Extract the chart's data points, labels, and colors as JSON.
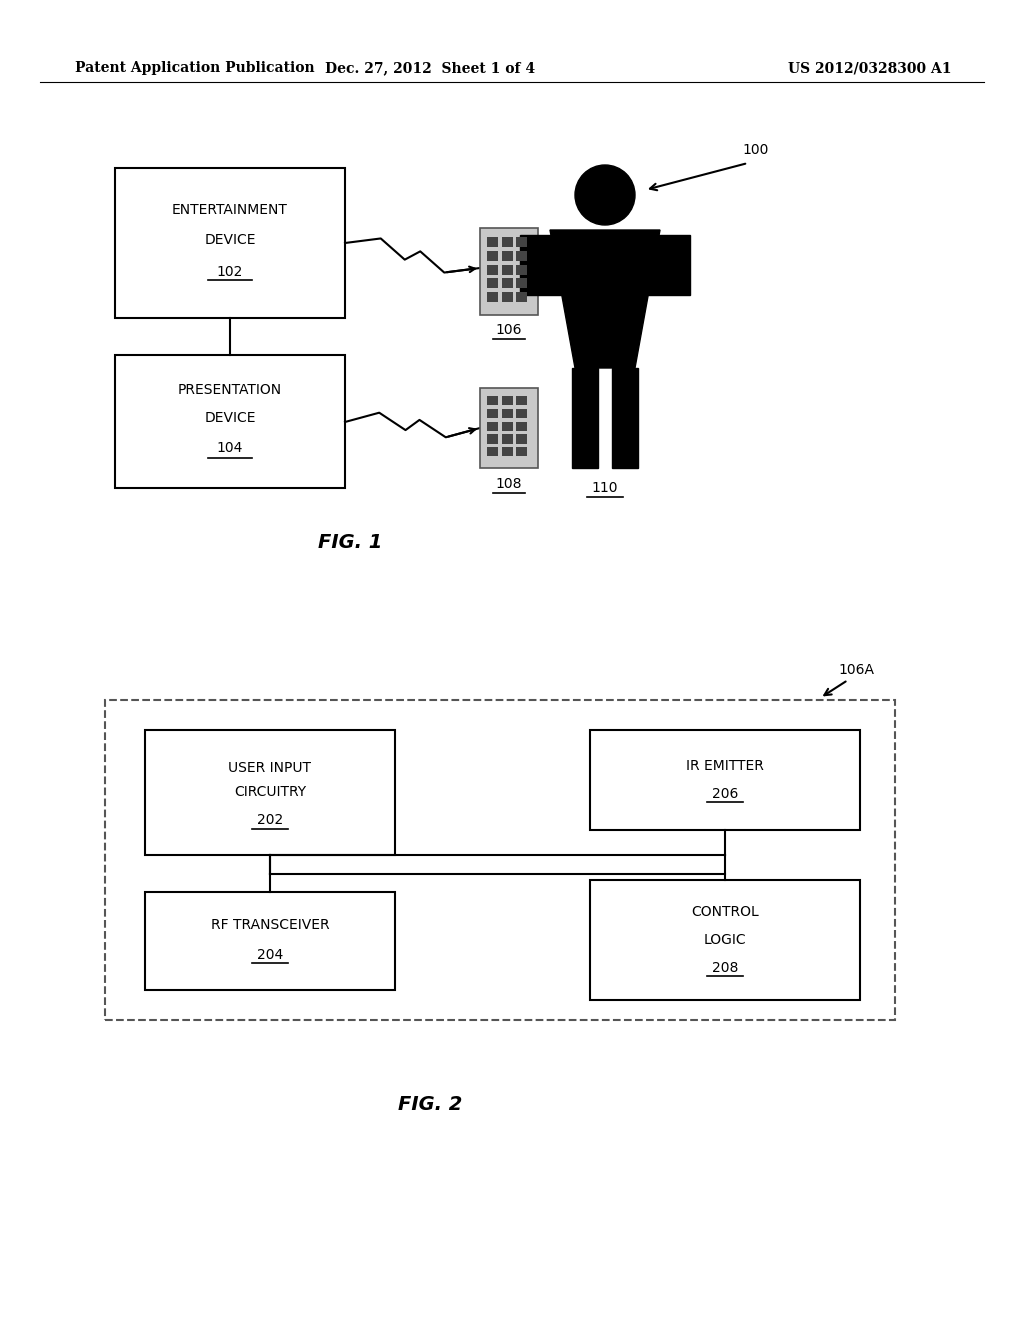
{
  "bg_color": "#ffffff",
  "header_left": "Patent Application Publication",
  "header_mid": "Dec. 27, 2012  Sheet 1 of 4",
  "header_right": "US 2012/0328300 A1",
  "fig1_label": "FIG. 1",
  "fig2_label": "FIG. 2"
}
